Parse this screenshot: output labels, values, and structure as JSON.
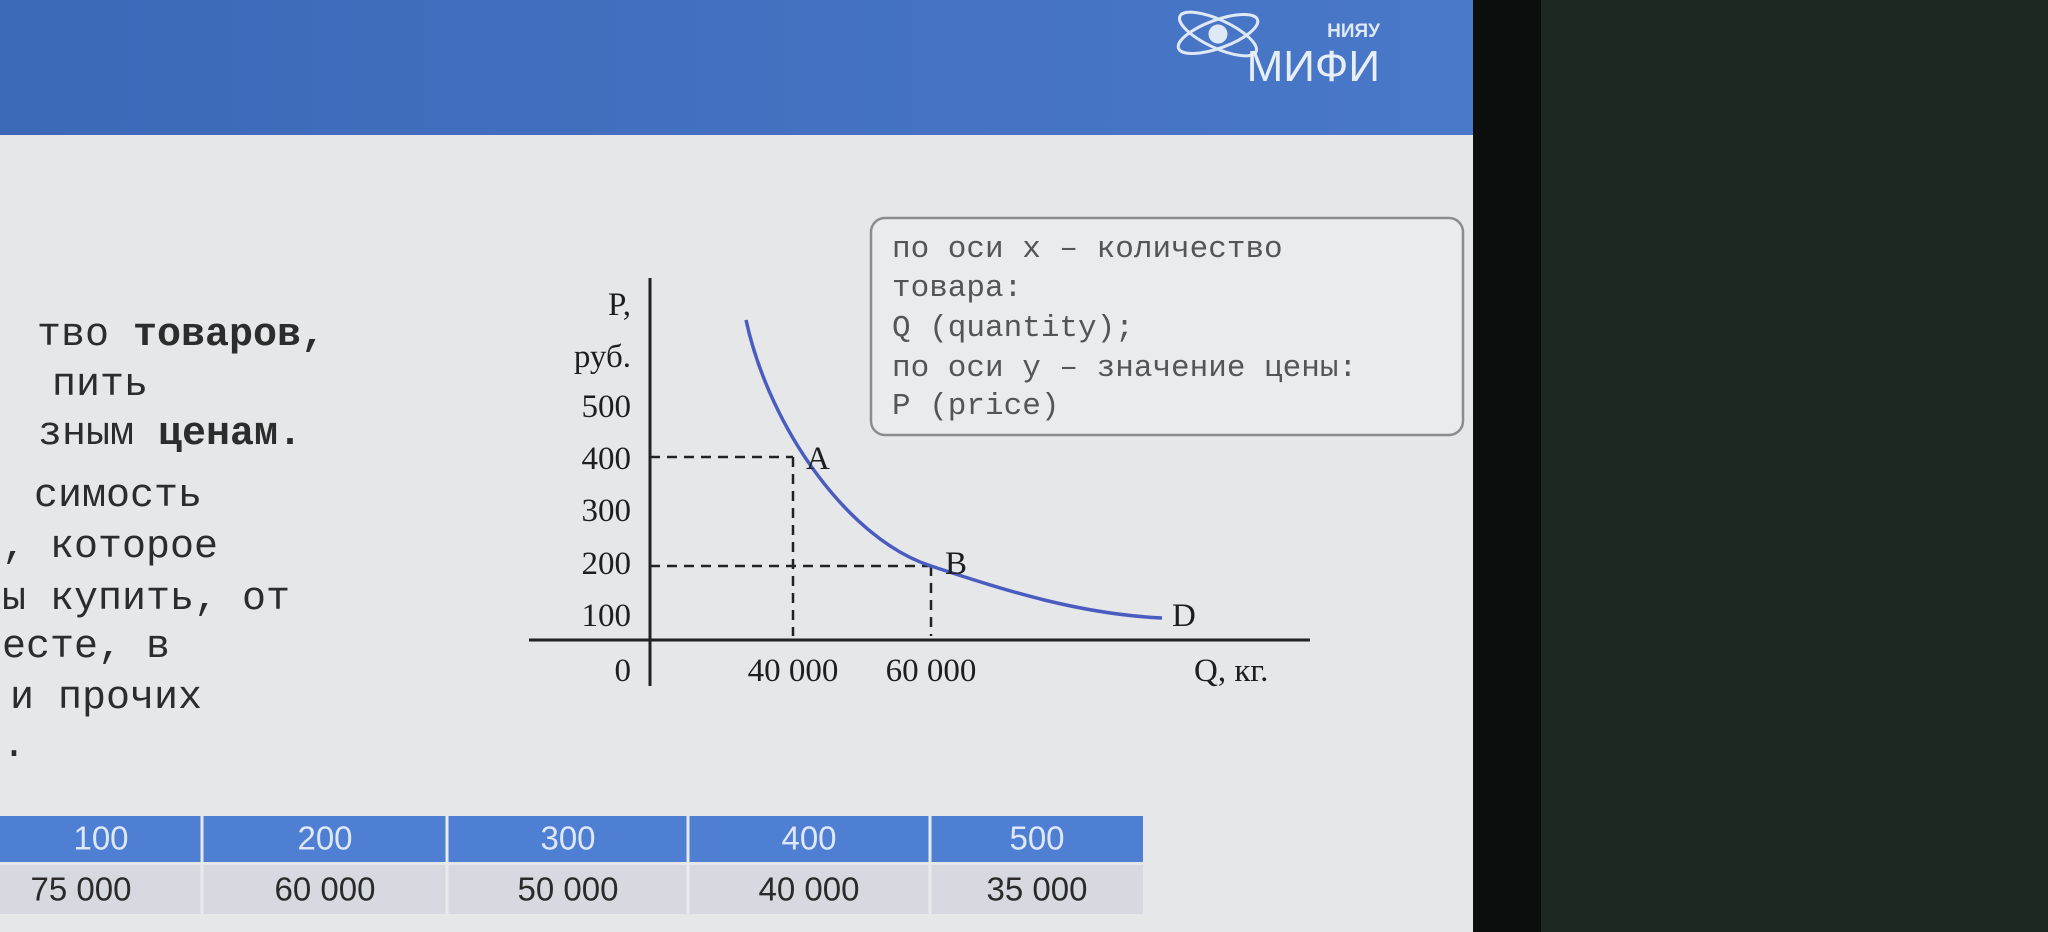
{
  "header": {
    "logo_small": "НИЯУ",
    "logo_main": "МИФИ"
  },
  "body_text": [
    [
      "тво",
      "товаров,"
    ],
    [
      "пить"
    ],
    [
      "зным",
      "ценам."
    ],
    [
      "симость"
    ],
    [
      ", которое"
    ],
    [
      "ы купить, от"
    ],
    [
      "есте, в"
    ],
    [
      "и прочих"
    ],
    [
      "."
    ]
  ],
  "note": [
    "по оси x – количество",
    "товара:",
    "Q (quantity);",
    "по оси y –  значение цены:",
    "P (price)"
  ],
  "figure": {
    "y_label": [
      "P,",
      "руб."
    ],
    "yticks": [
      "500",
      "400",
      "300",
      "200",
      "100"
    ],
    "origin": "0",
    "xticks": [
      "40 000",
      "60 000"
    ],
    "x_label": "Q, кг.",
    "points": [
      "A",
      "B",
      "D"
    ]
  },
  "table": {
    "header": [
      "100",
      "200",
      "300",
      "400",
      "500"
    ],
    "row": [
      "75 000",
      "60 000",
      "50 000",
      "40 000",
      "35 000"
    ]
  }
}
